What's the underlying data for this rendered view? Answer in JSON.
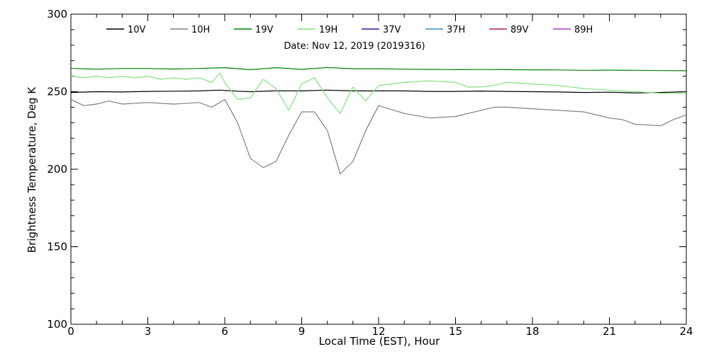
{
  "chart_data": {
    "type": "line",
    "title": "",
    "subtitle": "Date: Nov 12, 2019 (2019316)",
    "xlabel": "Local Time (EST), Hour",
    "ylabel": "Brightness Temperature, Deg K",
    "xlim": [
      0,
      24
    ],
    "ylim": [
      100,
      300
    ],
    "xticks": [
      0,
      3,
      6,
      9,
      12,
      15,
      18,
      21,
      24
    ],
    "yticks": [
      100,
      150,
      200,
      250,
      300
    ],
    "grid": false,
    "legend_position": "top",
    "series": [
      {
        "name": "10V",
        "color": "#000000",
        "x": [
          0,
          1,
          2,
          3,
          4,
          5,
          5.8,
          6.5,
          7,
          8,
          9,
          10,
          11,
          12,
          13,
          14,
          15,
          16,
          17,
          18,
          19,
          20,
          21,
          22,
          23,
          24
        ],
        "y": [
          249.5,
          250,
          249.8,
          250.2,
          250.3,
          250.5,
          251,
          250.3,
          250,
          250.6,
          250.5,
          251,
          250.5,
          250.5,
          250.5,
          250.2,
          250.2,
          250.4,
          250.2,
          250,
          249.8,
          249.5,
          249.7,
          249.2,
          249.5,
          250
        ]
      },
      {
        "name": "10H",
        "color": "#808080",
        "x": [
          0,
          0.5,
          1,
          1.5,
          2,
          3,
          4,
          5,
          5.5,
          6,
          6.5,
          7,
          7.5,
          8,
          8.5,
          9,
          9.5,
          10,
          10.5,
          11,
          11.5,
          12,
          13,
          14,
          15,
          16,
          16.5,
          17,
          18,
          19,
          20,
          21,
          21.5,
          22,
          23,
          23.5,
          24
        ],
        "y": [
          245,
          241,
          242,
          244,
          242,
          243,
          242,
          243,
          240,
          245,
          230,
          207,
          201,
          205,
          222,
          237,
          237,
          225,
          197,
          205,
          225,
          241,
          236,
          233,
          234,
          238,
          240,
          240,
          239,
          238,
          237,
          233,
          232,
          229,
          228,
          232,
          235
        ]
      },
      {
        "name": "19V",
        "color": "#008000",
        "x": [
          0,
          1,
          2,
          3,
          4,
          5,
          6,
          7,
          8,
          9,
          10,
          11,
          12,
          13,
          14,
          15,
          16,
          17,
          18,
          19,
          20,
          21,
          22,
          23,
          24
        ],
        "y": [
          265,
          264.5,
          265,
          265,
          264.6,
          265,
          265.5,
          264.2,
          265.5,
          264.4,
          265.6,
          264.8,
          264.8,
          264.5,
          264.4,
          264.2,
          264.3,
          264.2,
          264.1,
          264,
          263.8,
          263.9,
          263.8,
          263.6,
          263.5
        ]
      },
      {
        "name": "19H",
        "color": "#80e080",
        "x": [
          0,
          0.5,
          1,
          1.5,
          2,
          2.5,
          3,
          3.5,
          4,
          4.5,
          5,
          5.5,
          5.8,
          6,
          6.5,
          7,
          7.5,
          8,
          8.5,
          9,
          9.5,
          10,
          10.5,
          11,
          11.5,
          12,
          12.5,
          13,
          14,
          15,
          15.5,
          16,
          16.5,
          17,
          18,
          19,
          20,
          21,
          22,
          23,
          24
        ],
        "y": [
          260,
          259,
          260,
          259,
          260,
          259,
          260,
          258,
          259,
          258,
          259,
          256,
          262,
          256,
          245,
          246,
          258,
          252,
          238,
          255,
          259,
          246,
          236,
          253,
          244,
          254,
          255,
          256,
          257,
          256,
          253,
          253,
          254,
          256,
          255,
          254,
          252,
          251,
          250,
          249,
          249
        ]
      },
      {
        "name": "37V",
        "color": "#2020a0",
        "x": [],
        "y": []
      },
      {
        "name": "37H",
        "color": "#3090c0",
        "x": [],
        "y": []
      },
      {
        "name": "89V",
        "color": "#b02040",
        "x": [],
        "y": []
      },
      {
        "name": "89H",
        "color": "#a040c0",
        "x": [],
        "y": []
      }
    ]
  }
}
